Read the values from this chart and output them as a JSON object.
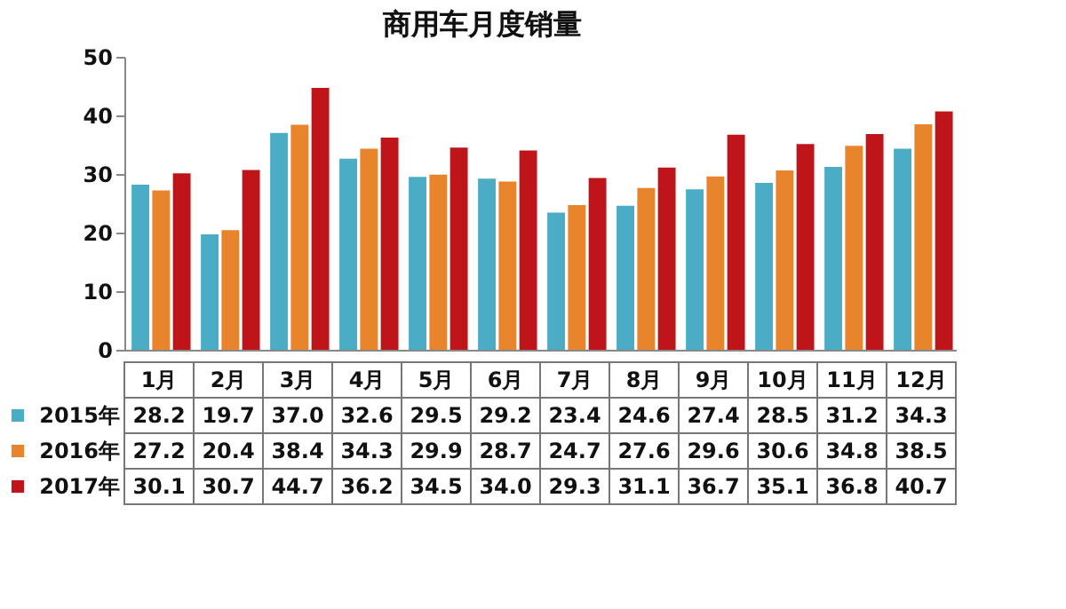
{
  "chart_data": {
    "type": "bar",
    "title": "商用车月度销量",
    "categories": [
      "1月",
      "2月",
      "3月",
      "4月",
      "5月",
      "6月",
      "7月",
      "8月",
      "9月",
      "10月",
      "11月",
      "12月"
    ],
    "series": [
      {
        "name": "2015年",
        "color": "#4bacc6",
        "values": [
          28.2,
          19.7,
          37.0,
          32.6,
          29.5,
          29.2,
          23.4,
          24.6,
          27.4,
          28.5,
          31.2,
          34.3
        ],
        "value_labels": [
          "28.2",
          "19.7",
          "37.0",
          "32.6",
          "29.5",
          "29.2",
          "23.4",
          "24.6",
          "27.4",
          "28.5",
          "31.2",
          "34.3"
        ]
      },
      {
        "name": "2016年",
        "color": "#e8842c",
        "values": [
          27.2,
          20.4,
          38.4,
          34.3,
          29.9,
          28.7,
          24.7,
          27.6,
          29.6,
          30.6,
          34.8,
          38.5
        ],
        "value_labels": [
          "27.2",
          "20.4",
          "38.4",
          "34.3",
          "29.9",
          "28.7",
          "24.7",
          "27.6",
          "29.6",
          "30.6",
          "34.8",
          "38.5"
        ]
      },
      {
        "name": "2017年",
        "color": "#c0141b",
        "values": [
          30.1,
          30.7,
          44.7,
          36.2,
          34.5,
          34.0,
          29.3,
          31.1,
          36.7,
          35.1,
          36.8,
          40.7
        ],
        "value_labels": [
          "30.1",
          "30.7",
          "44.7",
          "36.2",
          "34.5",
          "34.0",
          "29.3",
          "31.1",
          "36.7",
          "35.1",
          "36.8",
          "40.7"
        ]
      }
    ],
    "ylim": [
      0,
      50
    ],
    "yticks": [
      0,
      10,
      20,
      30,
      40,
      50
    ],
    "grid": false,
    "legend": "bottom"
  }
}
